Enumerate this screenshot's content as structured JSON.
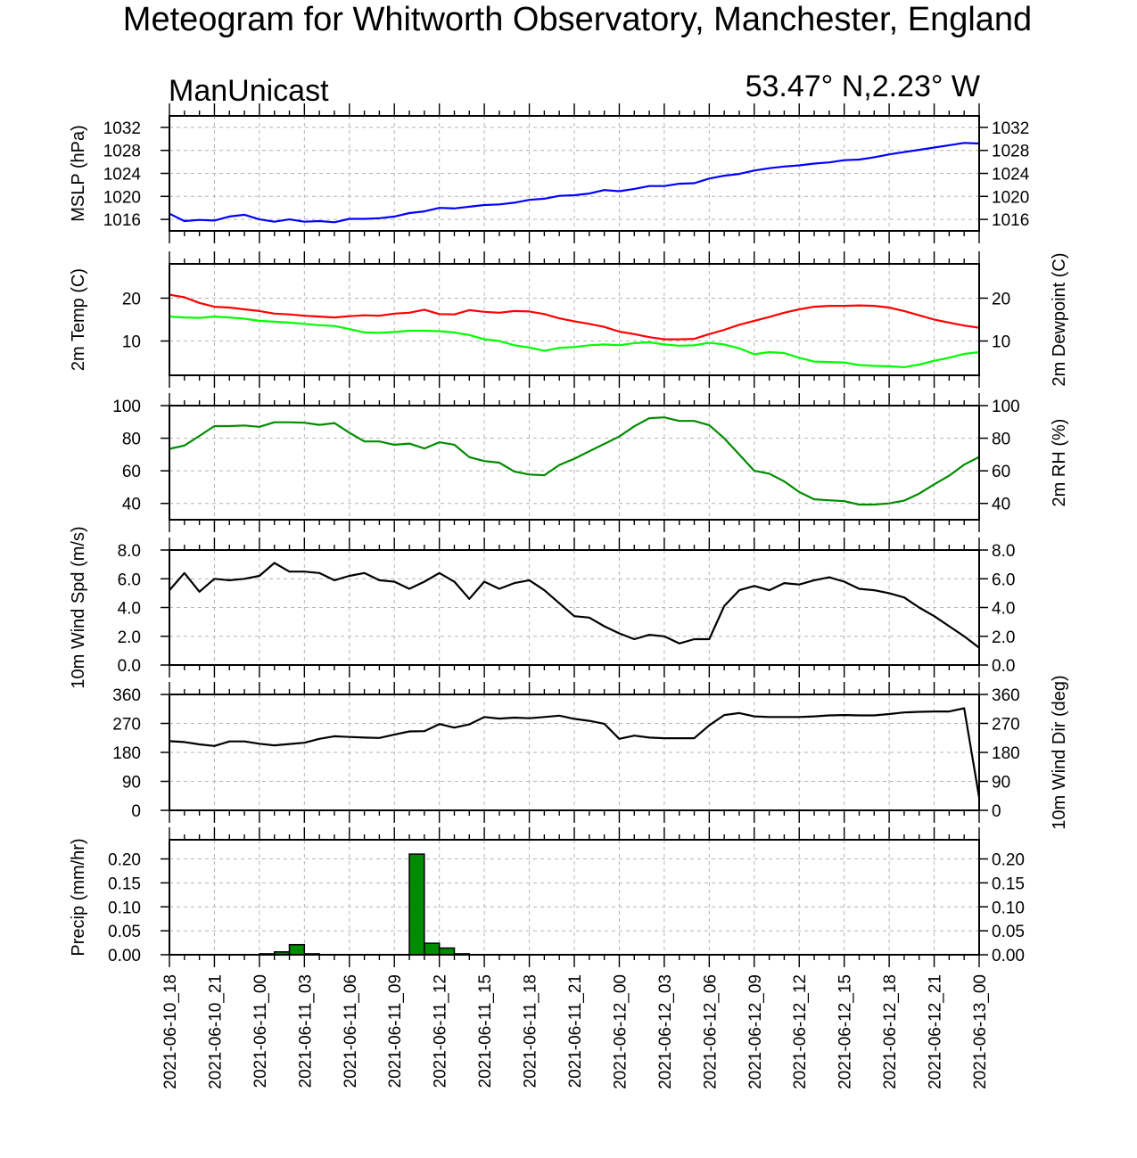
{
  "title": "Meteogram for Whitworth Observatory, Manchester, England",
  "subtitle_left": "ManUnicast",
  "subtitle_right": "53.47° N,2.23° W",
  "colors": {
    "mslp": "#0000ff",
    "temp": "#ff0000",
    "dewpoint": "#00ff00",
    "rh": "#008c00",
    "black": "#000000",
    "bar": "#008c00",
    "grid": "#b4b4b4"
  },
  "chart_data": [
    {
      "type": "line",
      "id": "mslp",
      "ylabel_left": "MSLP (hPa)",
      "ylabel_right": "",
      "ylim": [
        1014,
        1034
      ],
      "yticks": [
        1016,
        1020,
        1024,
        1028,
        1032
      ],
      "yticklabels": [
        "1016",
        "1020",
        "1024",
        "1028",
        "1032"
      ],
      "tick_labels_right": true,
      "series": [
        {
          "color": "#0000ff",
          "values": [
            1017.0,
            1015.7,
            1015.9,
            1015.8,
            1016.5,
            1016.8,
            1016.0,
            1015.6,
            1016.0,
            1015.6,
            1015.7,
            1015.5,
            1016.1,
            1016.1,
            1016.2,
            1016.5,
            1017.1,
            1017.4,
            1018.0,
            1017.9,
            1018.2,
            1018.5,
            1018.6,
            1018.9,
            1019.4,
            1019.6,
            1020.1,
            1020.2,
            1020.5,
            1021.1,
            1020.9,
            1021.3,
            1021.8,
            1021.8,
            1022.2,
            1022.3,
            1023.1,
            1023.6,
            1023.9,
            1024.5,
            1024.9,
            1025.2,
            1025.4,
            1025.7,
            1025.9,
            1026.3,
            1026.4,
            1026.8,
            1027.3,
            1027.7,
            1028.1,
            1028.5,
            1028.9,
            1029.3,
            1029.2
          ]
        }
      ]
    },
    {
      "type": "line",
      "id": "temperature",
      "ylabel_left": "2m Temp (C)",
      "ylabel_right": "2m Dewpoint (C)",
      "ylim": [
        2,
        28
      ],
      "yticks": [
        10,
        20
      ],
      "yticklabels": [
        "10",
        "20"
      ],
      "tick_labels_right": true,
      "series": [
        {
          "color": "#ff0000",
          "values": [
            20.8,
            20.2,
            18.9,
            18.0,
            17.8,
            17.4,
            17.0,
            16.4,
            16.2,
            15.9,
            15.7,
            15.5,
            15.8,
            16.0,
            15.9,
            16.4,
            16.6,
            17.3,
            16.3,
            16.2,
            17.2,
            16.8,
            16.6,
            17.0,
            16.9,
            16.3,
            15.3,
            14.6,
            14.0,
            13.3,
            12.2,
            11.6,
            10.9,
            10.4,
            10.4,
            10.5,
            11.6,
            12.6,
            13.8,
            14.7,
            15.6,
            16.6,
            17.4,
            18.0,
            18.2,
            18.2,
            18.3,
            18.2,
            17.8,
            17.0,
            16.0,
            15.0,
            14.3,
            13.6,
            13.1
          ]
        },
        {
          "color": "#00ff00",
          "values": [
            15.7,
            15.5,
            15.4,
            15.7,
            15.5,
            15.2,
            14.7,
            14.5,
            14.3,
            14.0,
            13.7,
            13.5,
            12.8,
            12.0,
            11.9,
            12.1,
            12.4,
            12.4,
            12.3,
            12.0,
            11.4,
            10.4,
            10.0,
            9.0,
            8.5,
            7.7,
            8.4,
            8.6,
            9.0,
            9.2,
            9.0,
            9.5,
            9.7,
            9.2,
            8.9,
            9.0,
            9.6,
            9.2,
            8.3,
            6.9,
            7.4,
            7.2,
            6.1,
            5.2,
            5.1,
            5.0,
            4.4,
            4.2,
            4.1,
            3.9,
            4.5,
            5.4,
            6.1,
            7.0,
            7.4
          ]
        }
      ]
    },
    {
      "type": "line",
      "id": "rh",
      "ylabel_left": "",
      "ylabel_right": "2m RH (%)",
      "ylim": [
        30,
        100
      ],
      "yticks": [
        40,
        60,
        80,
        100
      ],
      "yticklabels": [
        "40",
        "60",
        "80",
        "100"
      ],
      "tick_labels_right": true,
      "series": [
        {
          "color": "#008c00",
          "values": [
            73.5,
            75.5,
            81.4,
            87.4,
            87.4,
            87.8,
            87.0,
            89.8,
            89.8,
            89.5,
            88.2,
            89.3,
            83.4,
            78.0,
            78.0,
            76.0,
            76.7,
            73.7,
            77.5,
            76.0,
            68.4,
            66.0,
            65.0,
            59.6,
            57.7,
            57.3,
            63.6,
            67.4,
            72.0,
            76.5,
            81.0,
            87.3,
            92.3,
            92.8,
            90.6,
            90.6,
            88.0,
            80.0,
            70.0,
            60.0,
            58.3,
            53.5,
            47.0,
            42.5,
            41.9,
            41.4,
            39.3,
            39.3,
            40.0,
            41.7,
            46.0,
            51.7,
            57.0,
            63.8,
            68.5
          ]
        }
      ]
    },
    {
      "type": "line",
      "id": "windspeed",
      "ylabel_left": "10m Wind Spd (m/s)",
      "ylabel_right": "",
      "ylim": [
        0,
        8
      ],
      "yticks": [
        0,
        2,
        4,
        6,
        8
      ],
      "yticklabels": [
        "0.0",
        "2.0",
        "4.0",
        "6.0",
        "8.0"
      ],
      "tick_labels_right": true,
      "series": [
        {
          "color": "#000000",
          "values": [
            5.2,
            6.4,
            5.1,
            6.0,
            5.9,
            6.0,
            6.2,
            7.1,
            6.5,
            6.5,
            6.4,
            5.9,
            6.2,
            6.4,
            5.9,
            5.8,
            5.3,
            5.8,
            6.4,
            5.8,
            4.6,
            5.8,
            5.3,
            5.7,
            5.9,
            5.2,
            4.3,
            3.4,
            3.3,
            2.7,
            2.2,
            1.8,
            2.1,
            2.0,
            1.5,
            1.8,
            1.8,
            4.1,
            5.2,
            5.5,
            5.2,
            5.7,
            5.6,
            5.9,
            6.1,
            5.8,
            5.3,
            5.2,
            5.0,
            4.7,
            4.0,
            3.4,
            2.7,
            2.0,
            1.2
          ]
        }
      ]
    },
    {
      "type": "line",
      "id": "winddir",
      "ylabel_left": "",
      "ylabel_right": "10m Wind Dir (deg)",
      "ylim": [
        0,
        360
      ],
      "yticks": [
        0,
        90,
        180,
        270,
        360
      ],
      "yticklabels": [
        "0",
        "90",
        "180",
        "270",
        "360"
      ],
      "tick_labels_right": true,
      "series": [
        {
          "color": "#000000",
          "values": [
            215,
            212,
            205,
            200,
            214,
            214,
            207,
            202,
            206,
            210,
            222,
            230,
            228,
            226,
            225,
            235,
            245,
            246,
            268,
            257,
            267,
            290,
            285,
            288,
            286,
            290,
            294,
            284,
            278,
            269,
            222,
            232,
            226,
            224,
            224,
            224,
            264,
            296,
            302,
            292,
            290,
            290,
            290,
            292,
            295,
            296,
            295,
            295,
            299,
            304,
            306,
            307,
            307,
            317,
            40
          ]
        }
      ]
    },
    {
      "type": "bar",
      "id": "precip",
      "ylabel_left": "Precip (mm/hr)",
      "ylabel_right": "",
      "ylim": [
        0,
        0.24
      ],
      "yticks": [
        0,
        0.05,
        0.1,
        0.15,
        0.2
      ],
      "yticklabels": [
        "0.00",
        "0.05",
        "0.10",
        "0.15",
        "0.20"
      ],
      "tick_labels_right": true,
      "bars": [
        {
          "hour": 7,
          "value": 0.002
        },
        {
          "hour": 8,
          "value": 0.006
        },
        {
          "hour": 9,
          "value": 0.021
        },
        {
          "hour": 10,
          "value": 0.002
        },
        {
          "hour": 17,
          "value": 0.21
        },
        {
          "hour": 18,
          "value": 0.024
        },
        {
          "hour": 19,
          "value": 0.014
        },
        {
          "hour": 20,
          "value": 0.002
        }
      ]
    }
  ],
  "x_axis": {
    "hours": 54,
    "tick_every": 3,
    "ticklabels": [
      "2021-06-10_18",
      "2021-06-10_21",
      "2021-06-11_00",
      "2021-06-11_03",
      "2021-06-11_06",
      "2021-06-11_09",
      "2021-06-11_12",
      "2021-06-11_15",
      "2021-06-11_18",
      "2021-06-11_21",
      "2021-06-12_00",
      "2021-06-12_03",
      "2021-06-12_06",
      "2021-06-12_09",
      "2021-06-12_12",
      "2021-06-12_15",
      "2021-06-12_18",
      "2021-06-12_21",
      "2021-06-13_00"
    ]
  }
}
